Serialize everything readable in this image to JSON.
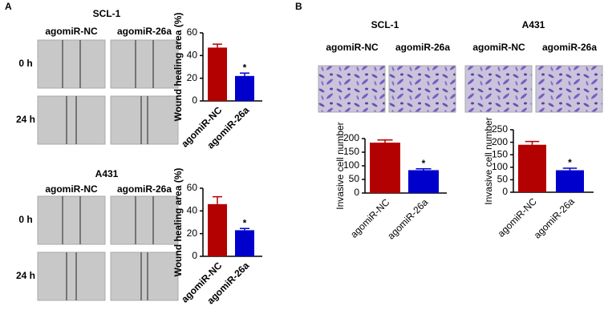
{
  "panel_labels": [
    "A",
    "B"
  ],
  "wound_images": [
    {
      "title": "SCL-1",
      "columns": [
        "agomiR-NC",
        "agomiR-26a"
      ],
      "rows": [
        "0 h",
        "24 h"
      ]
    },
    {
      "title": "A431",
      "columns": [
        "agomiR-NC",
        "agomiR-26a"
      ],
      "rows": [
        "0 h",
        "24 h"
      ]
    }
  ],
  "invasion_images": [
    {
      "title": "SCL-1",
      "columns": [
        "agomiR-NC",
        "agomiR-26a"
      ]
    },
    {
      "title": "A431",
      "columns": [
        "agomiR-NC",
        "agomiR-26a"
      ]
    }
  ],
  "chart_data": [
    {
      "type": "bar",
      "ylabel": "Wound healing area (%)",
      "categories": [
        "agomiR-NC",
        "agomiR-26a"
      ],
      "values": [
        47,
        22
      ],
      "errors": [
        3,
        2.5
      ],
      "colors": [
        "#b30000",
        "#0000cc"
      ],
      "annotation": "*",
      "ylim": [
        0,
        60
      ],
      "yticks": [
        0,
        20,
        40,
        60
      ]
    },
    {
      "type": "bar",
      "ylabel": "Wound healing area (%)",
      "categories": [
        "agomiR-NC",
        "agomiR-26a"
      ],
      "values": [
        46,
        23
      ],
      "errors": [
        6.5,
        1.5
      ],
      "colors": [
        "#b30000",
        "#0000cc"
      ],
      "annotation": "*",
      "ylim": [
        0,
        60
      ],
      "yticks": [
        0,
        20,
        40,
        60
      ]
    },
    {
      "type": "bar",
      "ylabel": "Invasive cell number",
      "categories": [
        "agomiR-NC",
        "agomiR-26a"
      ],
      "values": [
        185,
        84
      ],
      "errors": [
        10,
        5
      ],
      "colors": [
        "#b30000",
        "#0000cc"
      ],
      "annotation": "*",
      "ylim": [
        0,
        200
      ],
      "yticks": [
        0,
        50,
        100,
        150,
        200
      ]
    },
    {
      "type": "bar",
      "ylabel": "Invasive cell number",
      "categories": [
        "agomiR-NC",
        "agomiR-26a"
      ],
      "values": [
        190,
        88
      ],
      "errors": [
        13,
        8
      ],
      "colors": [
        "#b30000",
        "#0000cc"
      ],
      "annotation": "*",
      "ylim": [
        0,
        250
      ],
      "yticks": [
        0,
        50,
        100,
        150,
        200,
        250
      ]
    }
  ]
}
